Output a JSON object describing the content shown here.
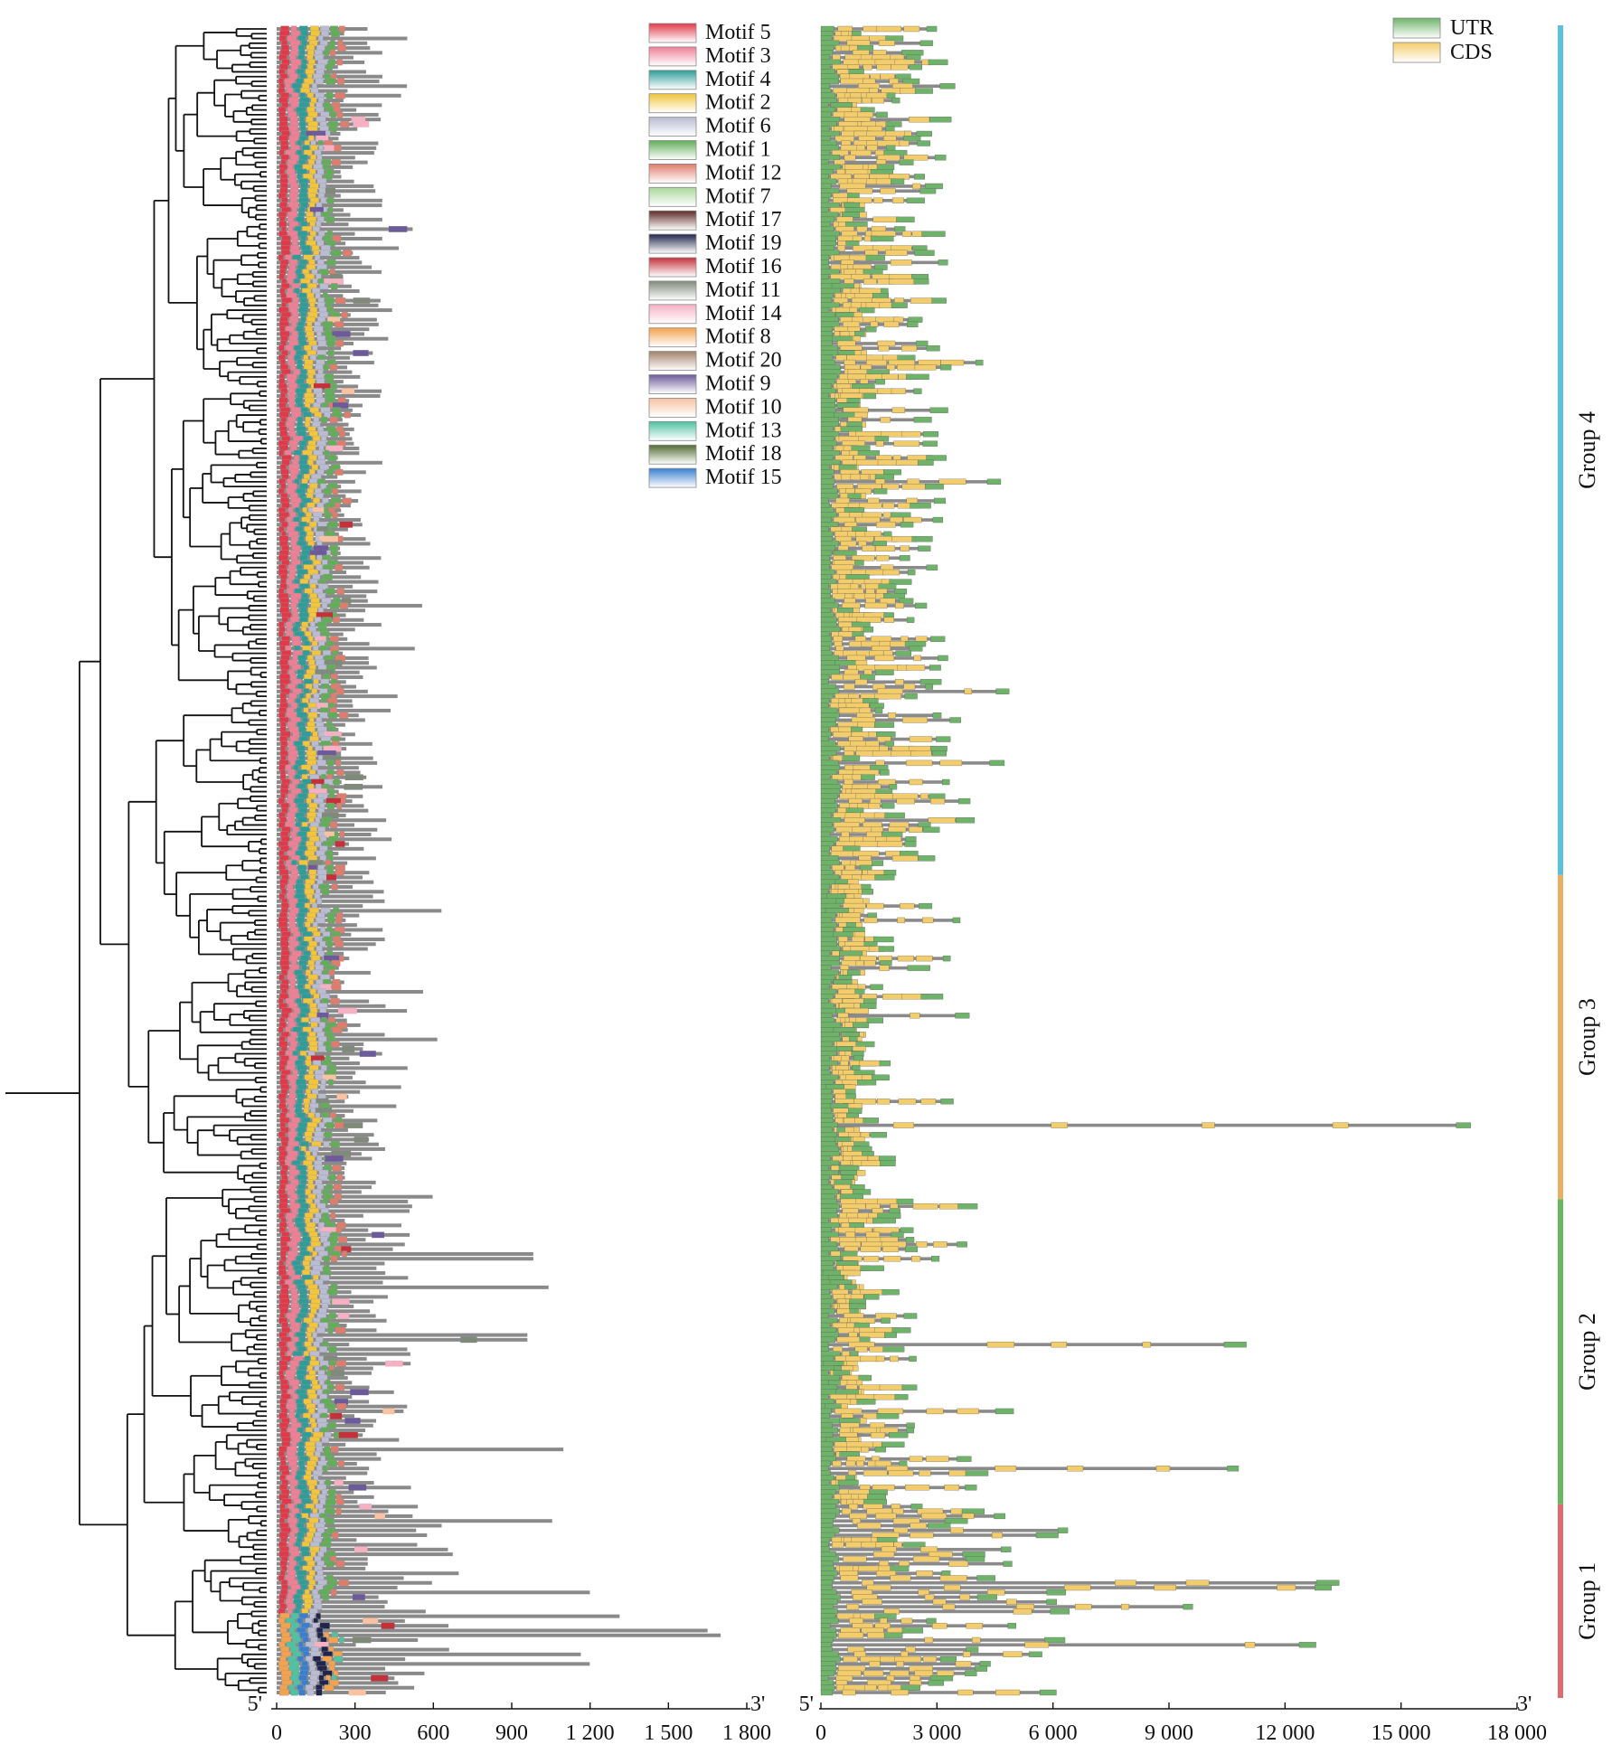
{
  "motif_legend": [
    {
      "label": "Motif 5",
      "color": "#e03a4a"
    },
    {
      "label": "Motif 3",
      "color": "#ef7f95"
    },
    {
      "label": "Motif 4",
      "color": "#2f9c98"
    },
    {
      "label": "Motif 2",
      "color": "#f1c53c"
    },
    {
      "label": "Motif 6",
      "color": "#b9bcd2"
    },
    {
      "label": "Motif 1",
      "color": "#62ad58"
    },
    {
      "label": "Motif 12",
      "color": "#e07c6c"
    },
    {
      "label": "Motif 7",
      "color": "#a9d79b"
    },
    {
      "label": "Motif 17",
      "color": "#5e2a26"
    },
    {
      "label": "Motif 19",
      "color": "#21254b"
    },
    {
      "label": "Motif 16",
      "color": "#c4313a"
    },
    {
      "label": "Motif 11",
      "color": "#7f8a7a"
    },
    {
      "label": "Motif 14",
      "color": "#f6b0c4"
    },
    {
      "label": "Motif 8",
      "color": "#f4a24e"
    },
    {
      "label": "Motif 20",
      "color": "#a2826a"
    },
    {
      "label": "Motif 9",
      "color": "#6c5a9a"
    },
    {
      "label": "Motif 10",
      "color": "#f9c2a2"
    },
    {
      "label": "Motif 13",
      "color": "#4fc2a1"
    },
    {
      "label": "Motif 18",
      "color": "#526c34"
    },
    {
      "label": "Motif 15",
      "color": "#3a7fcf"
    }
  ],
  "structure_legend": [
    {
      "label": "UTR",
      "color": "#6fb36a"
    },
    {
      "label": "CDS",
      "color": "#f3cd6b"
    }
  ],
  "motif_axis": {
    "start_label": "5'",
    "end_label": "3'",
    "ticks": [
      "0",
      "300",
      "600",
      "900",
      "1 200",
      "1 500",
      "1 800"
    ],
    "max": 1800
  },
  "gene_axis": {
    "start_label": "5'",
    "end_label": "3'",
    "ticks": [
      "0",
      "3 000",
      "6 000",
      "9 000",
      "12 000",
      "15 000",
      "18 000"
    ],
    "max": 18000
  },
  "groups": [
    {
      "label": "Group 4",
      "color": "#5bc0dc",
      "rows": 178
    },
    {
      "label": "Group 3",
      "color": "#e8b060",
      "rows": 68
    },
    {
      "label": "Group 2",
      "color": "#68b860",
      "rows": 64
    },
    {
      "label": "Group 1",
      "color": "#e06a70",
      "rows": 40
    }
  ],
  "colors": {
    "backbone": "#8a8a8a",
    "tree": "#111111",
    "axis": "#111111",
    "box_stroke": "#777777"
  }
}
